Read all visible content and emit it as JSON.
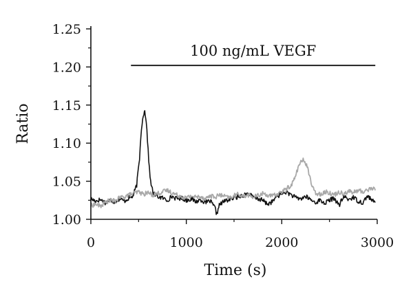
{
  "chart_data": {
    "type": "line",
    "title": "",
    "xlabel": "Time (s)",
    "ylabel": "Ratio",
    "xlim": [
      0,
      3000
    ],
    "ylim": [
      1.0,
      1.25
    ],
    "xticks": [
      0,
      1000,
      2000,
      3000
    ],
    "xtick_labels": [
      "0",
      "1000",
      "2000",
      "3000"
    ],
    "yticks": [
      1.0,
      1.05,
      1.1,
      1.15,
      1.2,
      1.25
    ],
    "ytick_labels": [
      "1.00",
      "1.05",
      "1.10",
      "1.15",
      "1.20",
      "1.25"
    ],
    "grid": false,
    "legend": "none",
    "annotation": {
      "text": "100 ng/mL VEGF",
      "x_start": 420,
      "x_end": 2980,
      "y": 1.202
    },
    "series": [
      {
        "color": "#111111",
        "x": [
          0,
          50,
          100,
          150,
          200,
          250,
          300,
          350,
          400,
          440,
          480,
          510,
          530,
          550,
          565,
          580,
          600,
          620,
          650,
          700,
          750,
          800,
          850,
          900,
          950,
          1000,
          1050,
          1100,
          1150,
          1200,
          1250,
          1300,
          1320,
          1340,
          1400,
          1450,
          1500,
          1550,
          1600,
          1650,
          1700,
          1750,
          1800,
          1850,
          1900,
          1950,
          2000,
          2050,
          2100,
          2150,
          2200,
          2250,
          2300,
          2350,
          2400,
          2450,
          2500,
          2550,
          2600,
          2650,
          2700,
          2750,
          2800,
          2850,
          2900,
          2950,
          2980
        ],
        "y": [
          1.027,
          1.024,
          1.026,
          1.022,
          1.025,
          1.023,
          1.027,
          1.024,
          1.028,
          1.03,
          1.045,
          1.08,
          1.12,
          1.138,
          1.142,
          1.13,
          1.09,
          1.055,
          1.035,
          1.03,
          1.028,
          1.025,
          1.03,
          1.027,
          1.028,
          1.025,
          1.027,
          1.023,
          1.026,
          1.022,
          1.024,
          1.015,
          1.006,
          1.018,
          1.024,
          1.026,
          1.028,
          1.03,
          1.032,
          1.034,
          1.029,
          1.027,
          1.025,
          1.02,
          1.023,
          1.03,
          1.034,
          1.036,
          1.032,
          1.028,
          1.027,
          1.03,
          1.026,
          1.022,
          1.025,
          1.021,
          1.025,
          1.028,
          1.018,
          1.03,
          1.026,
          1.029,
          1.024,
          1.022,
          1.031,
          1.024,
          1.022
        ]
      },
      {
        "color": "#a8a8a8",
        "x": [
          0,
          50,
          100,
          150,
          200,
          250,
          300,
          350,
          400,
          450,
          500,
          550,
          600,
          650,
          700,
          750,
          800,
          850,
          900,
          950,
          1000,
          1050,
          1100,
          1150,
          1200,
          1250,
          1300,
          1350,
          1400,
          1450,
          1500,
          1550,
          1600,
          1650,
          1700,
          1750,
          1800,
          1850,
          1900,
          1950,
          2000,
          2050,
          2100,
          2140,
          2170,
          2200,
          2230,
          2260,
          2290,
          2320,
          2350,
          2400,
          2450,
          2500,
          2550,
          2600,
          2650,
          2700,
          2750,
          2800,
          2850,
          2900,
          2950,
          2980
        ],
        "y": [
          1.018,
          1.02,
          1.017,
          1.022,
          1.025,
          1.024,
          1.028,
          1.03,
          1.032,
          1.034,
          1.036,
          1.033,
          1.035,
          1.032,
          1.034,
          1.036,
          1.038,
          1.035,
          1.032,
          1.03,
          1.028,
          1.031,
          1.029,
          1.03,
          1.027,
          1.031,
          1.029,
          1.032,
          1.03,
          1.028,
          1.031,
          1.033,
          1.03,
          1.032,
          1.029,
          1.031,
          1.034,
          1.032,
          1.03,
          1.033,
          1.036,
          1.04,
          1.045,
          1.055,
          1.068,
          1.075,
          1.078,
          1.072,
          1.058,
          1.042,
          1.035,
          1.033,
          1.036,
          1.035,
          1.032,
          1.036,
          1.034,
          1.037,
          1.035,
          1.038,
          1.036,
          1.039,
          1.041,
          1.038
        ]
      }
    ]
  }
}
